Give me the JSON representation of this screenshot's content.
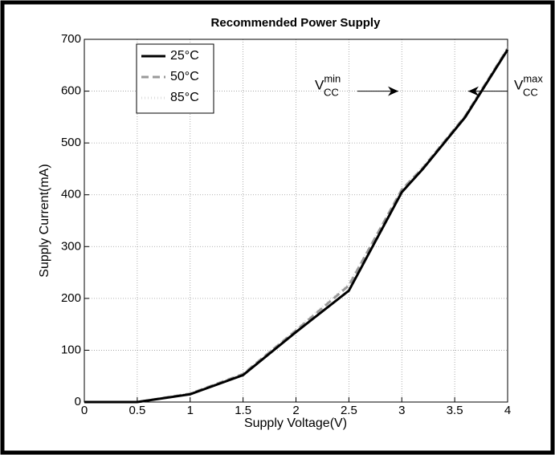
{
  "chart_data": {
    "type": "line",
    "title": "Recommended Power Supply",
    "x": [
      0,
      0.5,
      1,
      1.5,
      2,
      2.5,
      3,
      3.2,
      3.6,
      4
    ],
    "series": [
      {
        "name": "25°C",
        "color": "#000000",
        "style": "solid",
        "values": [
          0,
          0,
          15,
          52,
          135,
          215,
          405,
          450,
          550,
          680
        ]
      },
      {
        "name": "50°C",
        "color": "#999999",
        "style": "dashed",
        "values": [
          0,
          0,
          16,
          54,
          138,
          225,
          410,
          452,
          552,
          682
        ]
      },
      {
        "name": "85°C",
        "color": "#dddddd",
        "style": "dotted",
        "values": [
          0,
          0,
          17,
          55,
          140,
          228,
          410,
          455,
          553,
          685
        ]
      }
    ],
    "xlabel": "Supply Voltage(V)",
    "ylabel": "Supply Current(mA)",
    "xlim": [
      0,
      4
    ],
    "xticks": [
      0,
      0.5,
      1,
      1.5,
      2,
      2.5,
      3,
      3.5,
      4
    ],
    "ylim": [
      0,
      700
    ],
    "yticks": [
      0,
      100,
      200,
      300,
      400,
      500,
      600,
      700
    ],
    "grid": true,
    "legend": "upper left",
    "annotations": [
      {
        "text": "V",
        "sub": "CC",
        "sup": "min"
      },
      {
        "text": "V",
        "sub": "CC",
        "sup": "max"
      }
    ]
  }
}
